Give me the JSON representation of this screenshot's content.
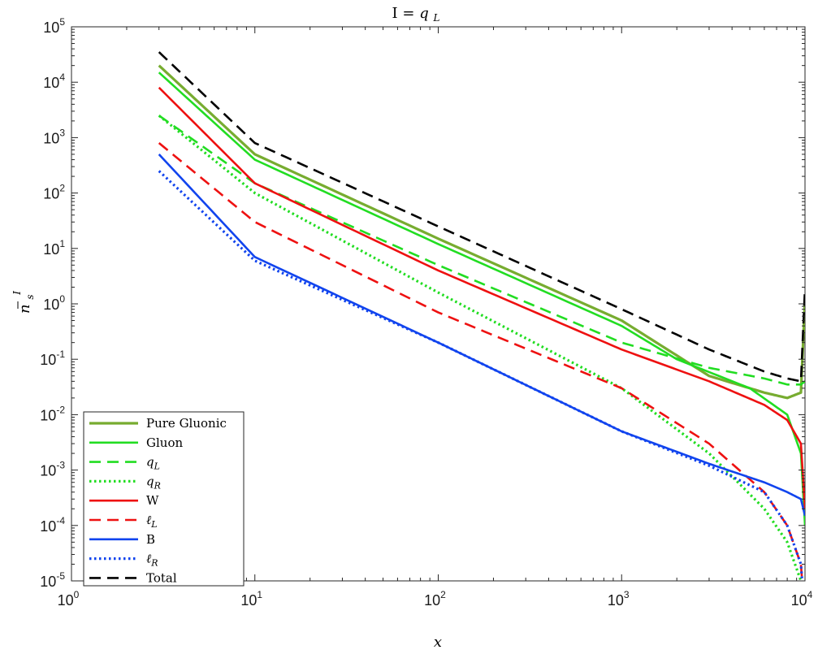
{
  "chart_data": {
    "type": "line",
    "title_prefix": "I =",
    "title_symbol": "q",
    "title_subscript": "L",
    "xlabel": "x",
    "ylabel_symbol": "n",
    "ylabel_superscript": "I",
    "ylabel_subscript": "s",
    "x_scale": "log",
    "y_scale": "log",
    "xlim": [
      1,
      10000
    ],
    "ylim": [
      1e-05,
      100000
    ],
    "x_ticks": [
      {
        "base": "10",
        "exp": "0",
        "value": 1
      },
      {
        "base": "10",
        "exp": "1",
        "value": 10
      },
      {
        "base": "10",
        "exp": "2",
        "value": 100
      },
      {
        "base": "10",
        "exp": "3",
        "value": 1000
      },
      {
        "base": "10",
        "exp": "4",
        "value": 10000
      }
    ],
    "y_ticks": [
      {
        "base": "10",
        "exp": "5",
        "value": 100000
      },
      {
        "base": "10",
        "exp": "4",
        "value": 10000
      },
      {
        "base": "10",
        "exp": "3",
        "value": 1000
      },
      {
        "base": "10",
        "exp": "2",
        "value": 100
      },
      {
        "base": "10",
        "exp": "1",
        "value": 10
      },
      {
        "base": "10",
        "exp": "0",
        "value": 1
      },
      {
        "base": "10",
        "exp": "-1",
        "value": 0.1
      },
      {
        "base": "10",
        "exp": "-2",
        "value": 0.01
      },
      {
        "base": "10",
        "exp": "-3",
        "value": 0.001
      },
      {
        "base": "10",
        "exp": "-4",
        "value": 0.0001
      },
      {
        "base": "10",
        "exp": "-5",
        "value": 1e-05
      }
    ],
    "grid": false,
    "legend_position": "bottom-left",
    "series": [
      {
        "name": "Pure Gluonic",
        "sym": "",
        "sub": "",
        "color": "#77ac30",
        "dash": "solid",
        "x": [
          3,
          10,
          100,
          1000,
          3000,
          6000,
          8000,
          9500,
          10000
        ],
        "y": [
          20000,
          500,
          15,
          0.5,
          0.05,
          0.025,
          0.02,
          0.025,
          1.2
        ]
      },
      {
        "name": "Gluon",
        "sym": "",
        "sub": "",
        "color": "#22dd22",
        "dash": "solid",
        "x": [
          3,
          10,
          100,
          1000,
          2000,
          5000,
          8000,
          9500,
          10000
        ],
        "y": [
          15000,
          400,
          12,
          0.4,
          0.1,
          0.03,
          0.01,
          0.002,
          0.0001
        ]
      },
      {
        "name": "",
        "sym": "q",
        "sub": "L",
        "color": "#22dd22",
        "dash": "dashed",
        "x": [
          3,
          10,
          100,
          1000,
          3000,
          6000,
          8000,
          9500,
          10000
        ],
        "y": [
          2500,
          150,
          5,
          0.2,
          0.07,
          0.045,
          0.035,
          0.035,
          0.04
        ]
      },
      {
        "name": "",
        "sym": "q",
        "sub": "R",
        "color": "#22dd22",
        "dash": "dotted",
        "x": [
          3,
          10,
          100,
          1000,
          3000,
          6000,
          8000,
          9500,
          10000
        ],
        "y": [
          2500,
          100,
          1.6,
          0.03,
          0.002,
          0.0002,
          5e-05,
          1e-05,
          1e-06
        ]
      },
      {
        "name": "W",
        "sym": "",
        "sub": "",
        "color": "#ee1111",
        "dash": "solid",
        "x": [
          3,
          10,
          100,
          1000,
          3000,
          6000,
          8000,
          9500,
          10000
        ],
        "y": [
          8000,
          150,
          4,
          0.15,
          0.04,
          0.015,
          0.008,
          0.003,
          0.0002
        ]
      },
      {
        "name": "",
        "sym": "ℓ",
        "sub": "L",
        "color": "#ee1111",
        "dash": "dashed",
        "x": [
          3,
          10,
          100,
          1000,
          3000,
          6000,
          8000,
          9500,
          10000
        ],
        "y": [
          800,
          30,
          0.7,
          0.03,
          0.003,
          0.0004,
          0.0001,
          2e-05,
          2e-06
        ]
      },
      {
        "name": "B",
        "sym": "",
        "sub": "",
        "color": "#1144ee",
        "dash": "solid",
        "x": [
          3,
          10,
          100,
          1000,
          3000,
          6000,
          8000,
          9500,
          10000
        ],
        "y": [
          500,
          7,
          0.2,
          0.005,
          0.0013,
          0.0006,
          0.0004,
          0.0003,
          0.00015
        ]
      },
      {
        "name": "",
        "sym": "ℓ",
        "sub": "R",
        "color": "#1144ee",
        "dash": "dotted",
        "x": [
          3,
          10,
          100,
          1000,
          3000,
          6000,
          8000,
          9500,
          10000
        ],
        "y": [
          250,
          6,
          0.2,
          0.005,
          0.0012,
          0.0004,
          0.0001,
          2e-05,
          2e-06
        ]
      },
      {
        "name": "Total",
        "sym": "",
        "sub": "",
        "color": "#000000",
        "dash": "dashed",
        "x": [
          3,
          10,
          100,
          1000,
          3000,
          6000,
          8000,
          9500,
          10000
        ],
        "y": [
          35000,
          800,
          25,
          0.8,
          0.15,
          0.06,
          0.045,
          0.04,
          2
        ]
      }
    ]
  }
}
